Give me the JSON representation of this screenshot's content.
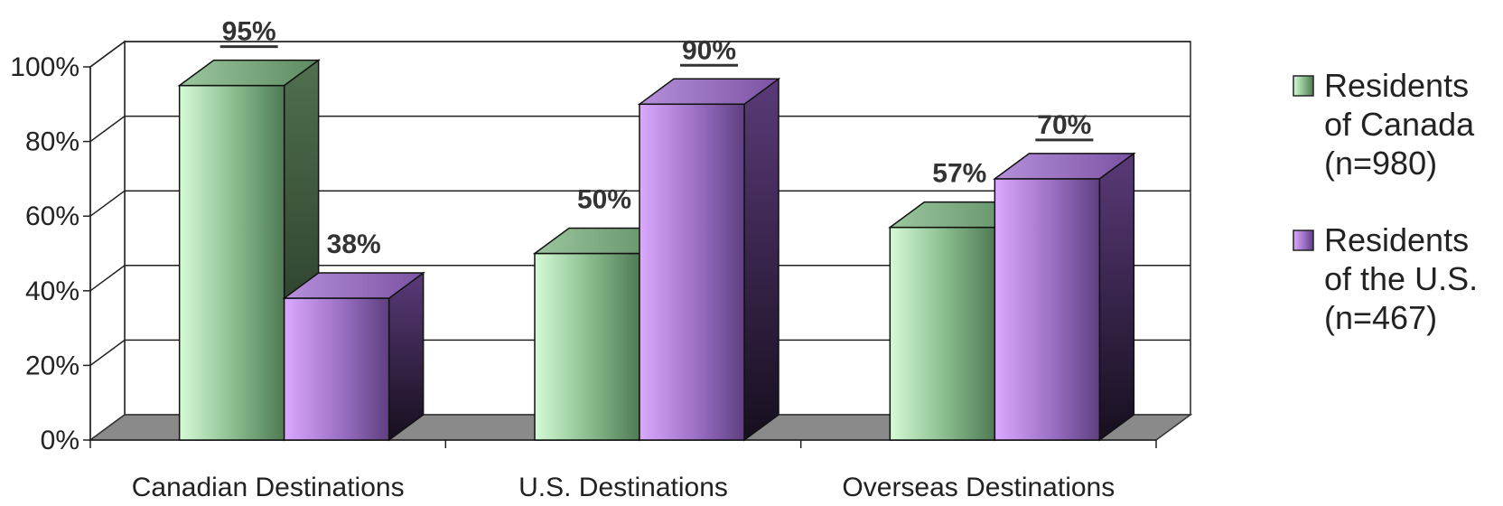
{
  "chart_data": {
    "type": "bar",
    "categories": [
      "Canadian Destinations",
      "U.S. Destinations",
      "Overseas Destinations"
    ],
    "series": [
      {
        "legend_lines": [
          "Residents",
          "of Canada",
          "(n=980)"
        ],
        "values": [
          95,
          50,
          57
        ],
        "labels": [
          "95%",
          "50%",
          "57%"
        ],
        "color": "#7fae82"
      },
      {
        "legend_lines": [
          "Residents",
          "of the U.S.",
          "(n=467)"
        ],
        "values": [
          38,
          90,
          70
        ],
        "labels": [
          "38%",
          "90%",
          "70%"
        ],
        "color": "#9a6fc4"
      }
    ],
    "yticks": [
      "0%",
      "20%",
      "40%",
      "60%",
      "80%",
      "100%"
    ],
    "ylim": [
      0,
      100
    ],
    "grid": true,
    "legend_position": "right",
    "three_d": true
  }
}
